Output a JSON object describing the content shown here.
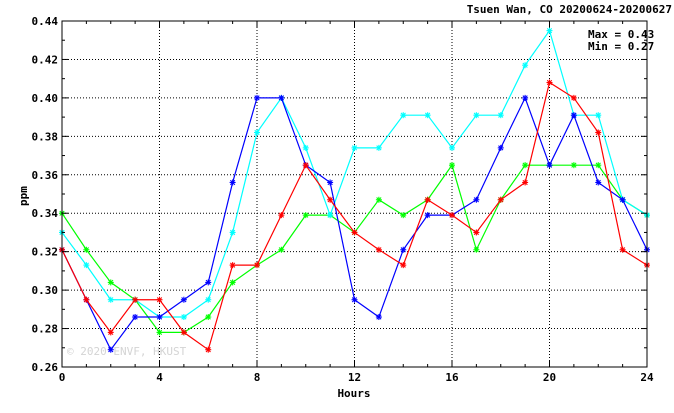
{
  "chart_data": {
    "type": "line",
    "title": "Tsuen Wan, CO 20200624-20200627",
    "xlabel": "Hours",
    "ylabel": "ppm",
    "xlim": [
      0,
      24
    ],
    "ylim": [
      0.26,
      0.44
    ],
    "xticks": [
      "0",
      "4",
      "8",
      "12",
      "16",
      "20",
      "24"
    ],
    "yticks": [
      "0.26",
      "0.28",
      "0.30",
      "0.32",
      "0.34",
      "0.36",
      "0.38",
      "0.40",
      "0.42",
      "0.44"
    ],
    "grid": true,
    "stats": {
      "max": "Max = 0.43",
      "min": "Min = 0.27"
    },
    "watermark": "© 2020 ENVF, HKUST",
    "x": [
      0,
      1,
      2,
      3,
      4,
      5,
      6,
      7,
      8,
      9,
      10,
      11,
      12,
      13,
      14,
      15,
      16,
      17,
      18,
      19,
      20,
      21,
      22,
      23,
      24
    ],
    "series": [
      {
        "color": "#00ff00",
        "values": [
          0.34,
          0.321,
          0.304,
          0.295,
          0.278,
          0.278,
          0.286,
          0.304,
          0.313,
          0.321,
          0.339,
          0.339,
          0.33,
          0.347,
          0.339,
          0.347,
          0.365,
          0.321,
          0.347,
          0.365,
          0.365,
          0.365,
          0.365,
          0.347,
          0.339
        ]
      },
      {
        "color": "#00ffff",
        "values": [
          0.33,
          0.313,
          0.295,
          0.295,
          0.286,
          0.286,
          0.295,
          0.33,
          0.382,
          0.4,
          0.374,
          0.339,
          0.374,
          0.374,
          0.391,
          0.391,
          0.374,
          0.391,
          0.391,
          0.417,
          0.435,
          0.391,
          0.391,
          0.347,
          0.339
        ]
      },
      {
        "color": "#0000ff",
        "values": [
          0.321,
          0.295,
          0.269,
          0.286,
          0.286,
          0.295,
          0.304,
          0.356,
          0.4,
          0.4,
          0.365,
          0.356,
          0.295,
          0.286,
          0.321,
          0.339,
          0.339,
          0.347,
          0.374,
          0.4,
          0.365,
          0.391,
          0.356,
          0.347,
          0.321
        ]
      },
      {
        "color": "#ff0000",
        "values": [
          0.321,
          0.295,
          0.278,
          0.295,
          0.295,
          0.278,
          0.269,
          0.313,
          0.313,
          0.339,
          0.365,
          0.347,
          0.33,
          0.321,
          0.313,
          0.347,
          0.339,
          0.33,
          0.347,
          0.356,
          0.408,
          0.4,
          0.382,
          0.321,
          0.313
        ]
      }
    ]
  }
}
